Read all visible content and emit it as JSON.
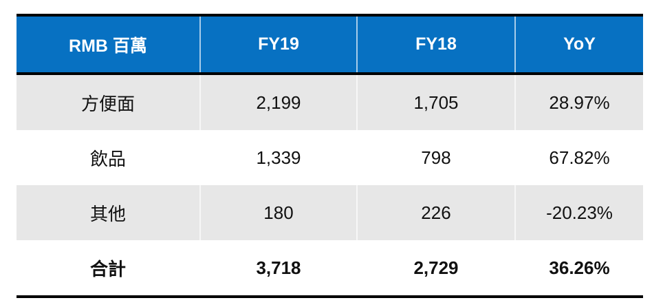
{
  "colors": {
    "accent": "#0771C2",
    "row_shade": "#E7E7E7",
    "rule": "#000000",
    "header_text": "#FFFFFF",
    "body_text": "#111111"
  },
  "table": {
    "header": {
      "label": "RMB 百萬",
      "fy19": "FY19",
      "fy18": "FY18",
      "yoy": "YoY"
    },
    "rows": [
      {
        "label": "方便面",
        "fy19": "2,199",
        "fy18": "1,705",
        "yoy": "28.97%"
      },
      {
        "label": "飲品",
        "fy19": "1,339",
        "fy18": "798",
        "yoy": "67.82%"
      },
      {
        "label": "其他",
        "fy19": "180",
        "fy18": "226",
        "yoy": "-20.23%"
      },
      {
        "label": "合計",
        "fy19": "3,718",
        "fy18": "2,729",
        "yoy": "36.26%"
      }
    ]
  },
  "chart_data": {
    "type": "table",
    "title": "",
    "unit_label": "RMB 百萬",
    "columns": [
      "RMB 百萬",
      "FY19",
      "FY18",
      "YoY"
    ],
    "rows": [
      {
        "category": "方便面",
        "fy19": 2199,
        "fy18": 1705,
        "yoy_pct": 28.97
      },
      {
        "category": "飲品",
        "fy19": 1339,
        "fy18": 798,
        "yoy_pct": 67.82
      },
      {
        "category": "其他",
        "fy19": 180,
        "fy18": 226,
        "yoy_pct": -20.23
      },
      {
        "category": "合計",
        "fy19": 3718,
        "fy18": 2729,
        "yoy_pct": 36.26
      }
    ],
    "layout": {
      "header_background": "#0771C2",
      "alternating_rows": true,
      "total_row_bold": true,
      "thick_black_rules": [
        "top",
        "below-header",
        "bottom"
      ]
    }
  }
}
